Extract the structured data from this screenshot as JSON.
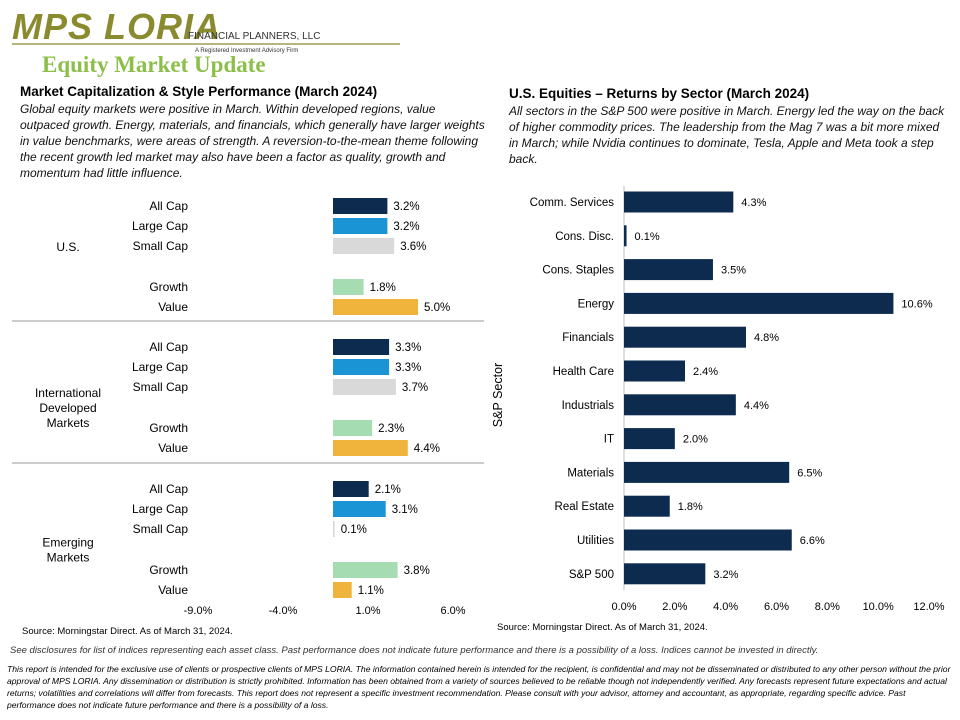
{
  "header": {
    "logo_text": "MPS LORIA",
    "logo_subtitle": "FINANCIAL PLANNERS, LLC",
    "logo_tagline": "A Registered Investment Advisory Firm",
    "page_title": "Equity Market Update"
  },
  "left_section": {
    "title": "Market Capitalization & Style Performance (March 2024)",
    "body": "Global equity markets were positive in March. Within developed regions, value outpaced growth. Energy, materials, and financials, which generally have larger weights in value benchmarks, were areas of strength. A reversion-to-the-mean theme following the recent growth led market may also have been a factor as quality, growth and momentum had little influence.",
    "source": "Source: Morningstar Direct. As of March 31, 2024."
  },
  "right_section": {
    "title": "U.S. Equities – Returns by Sector (March 2024)",
    "body": "All sectors in the S&P 500 were positive in March. Energy led the way on the back of higher commodity prices. The leadership from the Mag 7 was a bit more mixed in March; while Nvidia continues to dominate, Tesla, Apple and Meta took a step back.",
    "source": "Source: Morningstar Direct. As of March 31, 2024."
  },
  "footer": {
    "disclosure_note": "See disclosures for list of indices representing each asset class. Past performance does not indicate future performance and there is a possibility of a loss. Indices cannot be invested in directly.",
    "disclaimer": "This report is intended for the exclusive use of clients or prospective clients of MPS LORIA. The information contained herein is intended for the recipient, is confidential and may not be disseminated or distributed to any other person without the prior approval of MPS LORIA. Any dissemination or distribution is strictly prohibited. Information has been obtained from a variety of sources believed to be reliable though not independently verified. Any forecasts represent future expectations and actual returns; volatilities and correlations will differ from forecasts. This report does not represent a specific investment recommendation. Please consult with your advisor, attorney and accountant, as appropriate, regarding specific advice. Past performance does not indicate future performance and there is a possibility of a loss."
  },
  "colors": {
    "navy": "#0d2a4f",
    "blue": "#1a94d4",
    "gray": "#d9d9d9",
    "green": "#a6dcb1",
    "gold": "#f0b43c",
    "title_green": "#8cbf4a",
    "logo_olive": "#8a8a2e"
  },
  "chart_data": [
    {
      "type": "bar",
      "orientation": "horizontal",
      "title": "",
      "xlim": [
        -9.0,
        6.0
      ],
      "x_ticks": [
        "-9.0%",
        "-4.0%",
        "1.0%",
        "6.0%"
      ],
      "x_tick_values": [
        -9.0,
        -4.0,
        1.0,
        6.0
      ],
      "value_format": "percent_1dp",
      "groups": [
        {
          "name": "U.S.",
          "bars": [
            {
              "label": "All Cap",
              "value": 3.2,
              "color": "#0d2a4f"
            },
            {
              "label": "Large Cap",
              "value": 3.2,
              "color": "#1a94d4"
            },
            {
              "label": "Small Cap",
              "value": 3.6,
              "color": "#d9d9d9"
            },
            {
              "label": "Growth",
              "value": 1.8,
              "color": "#a6dcb1"
            },
            {
              "label": "Value",
              "value": 5.0,
              "color": "#f0b43c"
            }
          ]
        },
        {
          "name": "International Developed Markets",
          "name_lines": [
            "International",
            "Developed",
            "Markets"
          ],
          "bars": [
            {
              "label": "All Cap",
              "value": 3.3,
              "color": "#0d2a4f"
            },
            {
              "label": "Large Cap",
              "value": 3.3,
              "color": "#1a94d4"
            },
            {
              "label": "Small Cap",
              "value": 3.7,
              "color": "#d9d9d9"
            },
            {
              "label": "Growth",
              "value": 2.3,
              "color": "#a6dcb1"
            },
            {
              "label": "Value",
              "value": 4.4,
              "color": "#f0b43c"
            }
          ]
        },
        {
          "name": "Emerging Markets",
          "name_lines": [
            "Emerging",
            "Markets"
          ],
          "bars": [
            {
              "label": "All Cap",
              "value": 2.1,
              "color": "#0d2a4f"
            },
            {
              "label": "Large Cap",
              "value": 3.1,
              "color": "#1a94d4"
            },
            {
              "label": "Small Cap",
              "value": 0.1,
              "color": "#d9d9d9"
            },
            {
              "label": "Growth",
              "value": 3.8,
              "color": "#a6dcb1"
            },
            {
              "label": "Value",
              "value": 1.1,
              "color": "#f0b43c"
            }
          ]
        }
      ]
    },
    {
      "type": "bar",
      "orientation": "horizontal",
      "title": "",
      "ylabel": "S&P Sector",
      "categories": [
        "Comm. Services",
        "Cons. Disc.",
        "Cons. Staples",
        "Energy",
        "Financials",
        "Health Care",
        "Industrials",
        "IT",
        "Materials",
        "Real Estate",
        "Utilities",
        "S&P 500"
      ],
      "values": [
        4.3,
        0.1,
        3.5,
        10.6,
        4.8,
        2.4,
        4.4,
        2.0,
        6.5,
        1.8,
        6.6,
        3.2
      ],
      "xlim": [
        0.0,
        12.0
      ],
      "x_ticks": [
        "0.0%",
        "2.0%",
        "4.0%",
        "6.0%",
        "8.0%",
        "10.0%",
        "12.0%"
      ],
      "x_tick_values": [
        0,
        2,
        4,
        6,
        8,
        10,
        12
      ],
      "color": "#0d2a4f",
      "value_format": "percent_1dp"
    }
  ]
}
